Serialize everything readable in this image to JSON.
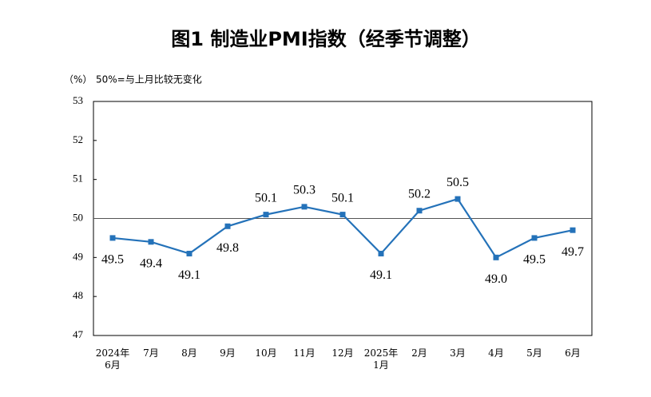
{
  "chart_data": {
    "type": "line",
    "title": "图1  制造业PMI指数（经季节调整）",
    "y_label": "（%）",
    "annotation": "50%=与上月比较无变化",
    "categories": [
      "2024年\n6月",
      "7月",
      "8月",
      "9月",
      "10月",
      "11月",
      "12月",
      "2025年\n1月",
      "2月",
      "3月",
      "4月",
      "5月",
      "6月"
    ],
    "series": [
      {
        "name": "制造业PMI",
        "color": "#2472b9",
        "values": [
          49.5,
          49.4,
          49.1,
          49.8,
          50.1,
          50.3,
          50.1,
          49.1,
          50.2,
          50.5,
          49.0,
          49.5,
          49.7
        ],
        "value_labels": [
          "49.5",
          "49.4",
          "49.1",
          "49.8",
          "50.1",
          "50.3",
          "50.1",
          "49.1",
          "50.2",
          "50.5",
          "49.0",
          "49.5",
          "49.7"
        ]
      }
    ],
    "ylim": [
      47,
      53
    ],
    "yticks": [
      47,
      48,
      49,
      50,
      51,
      52,
      53
    ],
    "reference_line": 50
  }
}
